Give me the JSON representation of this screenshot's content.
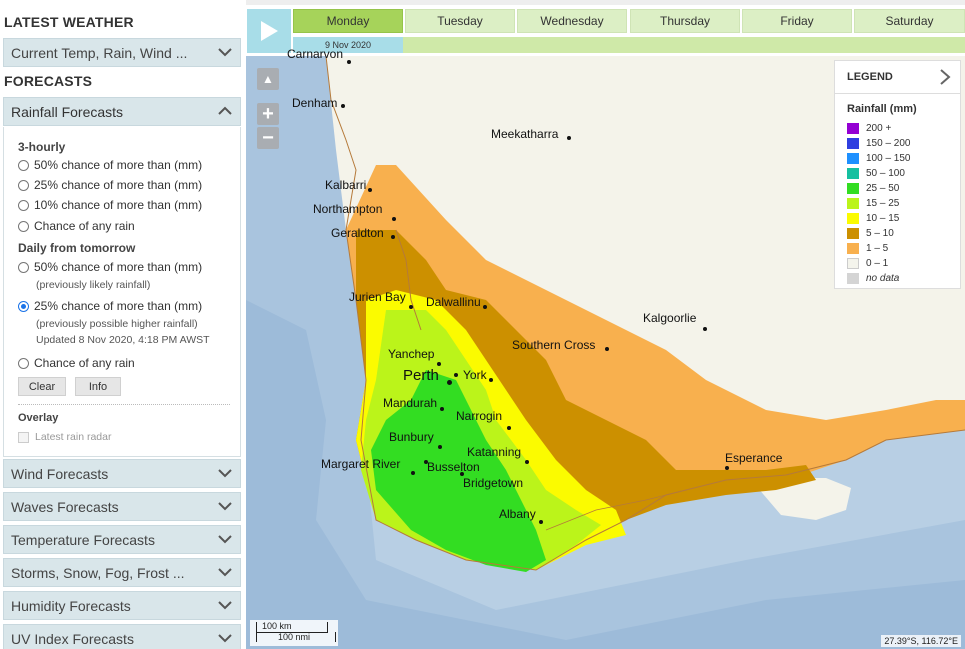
{
  "sidebar": {
    "latest_weather_title": "LATEST WEATHER",
    "current_item": "Current Temp, Rain, Wind ...",
    "forecasts_title": "FORECASTS",
    "rainfall_item": "Rainfall Forecasts",
    "rain_panel": {
      "group_3hourly": "3-hourly",
      "opts_3hourly": [
        "50% chance of more than (mm)",
        "25% chance of more than (mm)",
        "10% chance of more than (mm)",
        "Chance of any rain"
      ],
      "group_daily": "Daily from tomorrow",
      "daily_opt1": "50% chance of more than (mm)",
      "daily_opt1_sub": "(previously likely rainfall)",
      "daily_opt2": "25% chance of more than (mm)",
      "daily_opt2_sub": "(previously possible higher rainfall)",
      "updated": "Updated 8 Nov 2020, 4:18 PM AWST",
      "daily_opt3": "Chance of any rain",
      "selected": "daily_opt2",
      "clear_label": "Clear",
      "info_label": "Info",
      "overlay_title": "Overlay",
      "radar_label": "Latest rain radar"
    },
    "other_items": [
      "Wind Forecasts",
      "Waves Forecasts",
      "Temperature Forecasts",
      "Storms, Snow, Fog, Frost ...",
      "Humidity Forecasts",
      "UV Index Forecasts"
    ]
  },
  "timeline": {
    "days": [
      "Monday",
      "Tuesday",
      "Wednesday",
      "Thursday",
      "Friday",
      "Saturday"
    ],
    "selected_day": "Monday",
    "selected_date": "9 Nov 2020"
  },
  "legend": {
    "header": "LEGEND",
    "title": "Rainfall (mm)",
    "items": [
      {
        "label": "200 +",
        "color": "#9400d3"
      },
      {
        "label": "150 – 200",
        "color": "#2f3fe0"
      },
      {
        "label": "100 – 150",
        "color": "#1e90ff"
      },
      {
        "label": "50 – 100",
        "color": "#15c0a0"
      },
      {
        "label": "25 – 50",
        "color": "#33dd22"
      },
      {
        "label": "15 – 25",
        "color": "#bbf41a"
      },
      {
        "label": "10 – 15",
        "color": "#fbfb00"
      },
      {
        "label": "5 – 10",
        "color": "#cc9000"
      },
      {
        "label": "1 – 5",
        "color": "#f8b04e"
      },
      {
        "label": "0 – 1",
        "color": "#f4f4ec"
      },
      {
        "label": "no data",
        "color": "#d4d4d4"
      }
    ]
  },
  "map": {
    "places": [
      "Carnarvon",
      "Denham",
      "Meekatharra",
      "Kalbarri",
      "Northampton",
      "Geraldton",
      "Jurien Bay",
      "Dalwallinu",
      "Kalgoorlie",
      "Southern Cross",
      "Yanchep",
      "Perth",
      "York",
      "Mandurah",
      "Narrogin",
      "Bunbury",
      "Katanning",
      "Margaret River",
      "Busselton",
      "Bridgetown",
      "Albany",
      "Esperance"
    ],
    "scale_km": "100 km",
    "scale_nmi": "100 nmi",
    "coords": "27.39°S, 116.72°E"
  }
}
